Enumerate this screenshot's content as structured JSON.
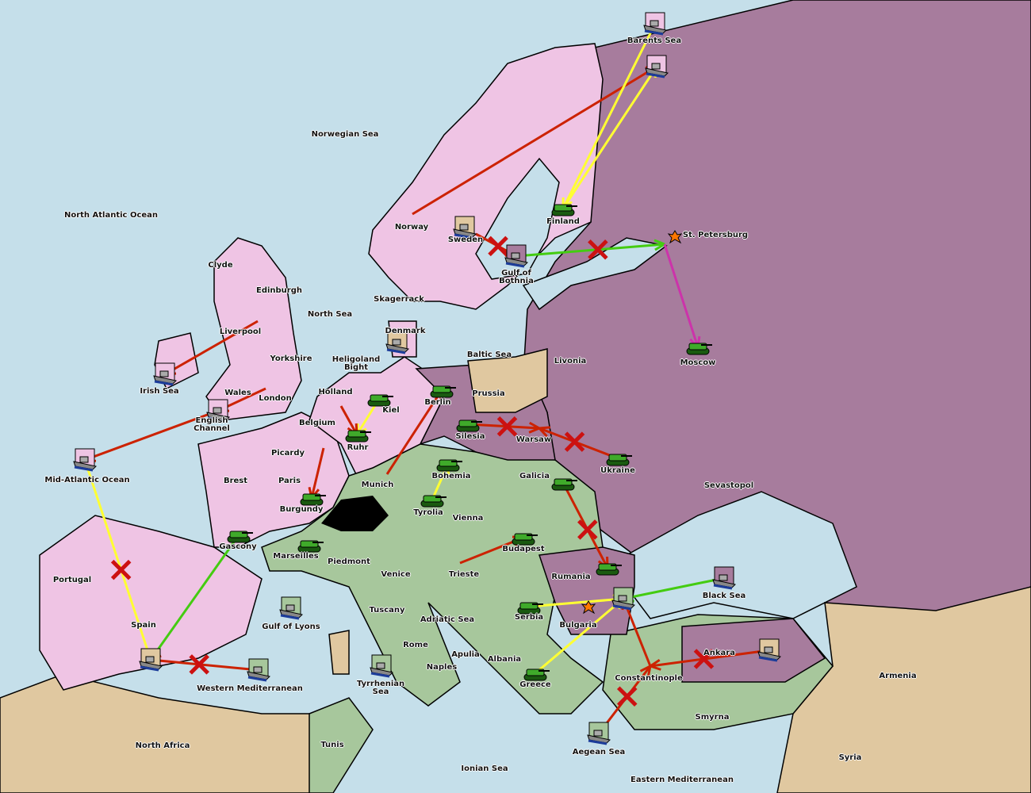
{
  "colors": {
    "sea": "#c5dfea",
    "england_germany": "#efc4e4",
    "russia_turkey": "#a77c9d",
    "austria_italy": "#a7c79c",
    "neutral": "#e0c8a0",
    "move_fail": "#cc2200",
    "support": "#ffff33",
    "convoy_hold": "#44cc11",
    "retreat": "#cc33aa"
  },
  "provinces": [
    "Barents Sea",
    "Norwegian Sea",
    "North Atlantic Ocean",
    "Finland",
    "Norway",
    "Sweden",
    "Gulf of Bothnia",
    "St. Petersburg",
    "Clyde",
    "Edinburgh",
    "North Sea",
    "Skagerrack",
    "Liverpool",
    "Denmark",
    "Baltic Sea",
    "Livonia",
    "Moscow",
    "Yorkshire",
    "Heligoland Bight",
    "Irish Sea",
    "Wales",
    "London",
    "Holland",
    "Kiel",
    "Prussia",
    "Berlin",
    "English Channel",
    "Belgium",
    "Silesia",
    "Warsaw",
    "Ruhr",
    "Ukraine",
    "Picardy",
    "Mid-Atlantic Ocean",
    "Brest",
    "Paris",
    "Munich",
    "Bohemia",
    "Galicia",
    "Sevastopol",
    "Burgundy",
    "Tyrolia",
    "Vienna",
    "Gascony",
    "Budapest",
    "Marseilles",
    "Piedmont",
    "Portugal",
    "Venice",
    "Trieste",
    "Rumania",
    "Black Sea",
    "Spain",
    "Gulf of Lyons",
    "Tuscany",
    "Adriatic Sea",
    "Serbia",
    "Bulgaria",
    "Rome",
    "Apulia",
    "Albania",
    "Ankara",
    "Naples",
    "Armenia",
    "Western Mediterranean",
    "Tyrrhenian Sea",
    "Greece",
    "Constantinople",
    "Smyrna",
    "North Africa",
    "Tunis",
    "Aegean Sea",
    "Syria",
    "Ionian Sea",
    "Eastern Mediterranean"
  ],
  "units": [
    {
      "type": "fleet",
      "at": "Barents Sea",
      "owner": "england_germany"
    },
    {
      "type": "fleet",
      "at": "St. Petersburg NC",
      "owner": "england_germany"
    },
    {
      "type": "army",
      "at": "Finland",
      "owner": "austria_italy"
    },
    {
      "type": "fleet",
      "at": "Sweden",
      "owner": "neutral"
    },
    {
      "type": "fleet",
      "at": "Gulf of Bothnia",
      "owner": "russia_turkey"
    },
    {
      "type": "fleet",
      "at": "Denmark",
      "owner": "neutral"
    },
    {
      "type": "fleet",
      "at": "Irish Sea",
      "owner": "england_germany"
    },
    {
      "type": "fleet",
      "at": "English Channel",
      "owner": "england_germany"
    },
    {
      "type": "fleet",
      "at": "Mid-Atlantic Ocean",
      "owner": "england_germany"
    },
    {
      "type": "army",
      "at": "Kiel",
      "owner": "austria_italy"
    },
    {
      "type": "army",
      "at": "Ruhr",
      "owner": "austria_italy"
    },
    {
      "type": "army",
      "at": "Berlin",
      "owner": "austria_italy"
    },
    {
      "type": "army",
      "at": "Silesia",
      "owner": "austria_italy"
    },
    {
      "type": "army",
      "at": "Ukraine",
      "owner": "austria_italy"
    },
    {
      "type": "army",
      "at": "Moscow",
      "owner": "austria_italy"
    },
    {
      "type": "army",
      "at": "Bohemia",
      "owner": "austria_italy"
    },
    {
      "type": "army",
      "at": "Tyrolia",
      "owner": "austria_italy"
    },
    {
      "type": "army",
      "at": "Galicia",
      "owner": "austria_italy"
    },
    {
      "type": "army",
      "at": "Budapest",
      "owner": "austria_italy"
    },
    {
      "type": "army",
      "at": "Burgundy",
      "owner": "austria_italy"
    },
    {
      "type": "army",
      "at": "Gascony",
      "owner": "austria_italy"
    },
    {
      "type": "army",
      "at": "Marseilles",
      "owner": "austria_italy"
    },
    {
      "type": "army",
      "at": "Rumania",
      "owner": "austria_italy"
    },
    {
      "type": "army",
      "at": "Serbia",
      "owner": "austria_italy"
    },
    {
      "type": "army",
      "at": "Greece",
      "owner": "austria_italy"
    },
    {
      "type": "fleet",
      "at": "Gulf of Lyons",
      "owner": "austria_italy"
    },
    {
      "type": "fleet",
      "at": "Spain",
      "owner": "neutral"
    },
    {
      "type": "fleet",
      "at": "Western Mediterranean",
      "owner": "austria_italy"
    },
    {
      "type": "fleet",
      "at": "Tyrrhenian Sea",
      "owner": "austria_italy"
    },
    {
      "type": "fleet",
      "at": "Bulgaria",
      "owner": "austria_italy"
    },
    {
      "type": "fleet",
      "at": "Black Sea",
      "owner": "russia_turkey"
    },
    {
      "type": "fleet",
      "at": "Ankara",
      "owner": "neutral"
    },
    {
      "type": "fleet",
      "at": "Aegean Sea",
      "owner": "austria_italy"
    }
  ],
  "orders": [
    {
      "from": "Norway",
      "to": "St. Petersburg NC",
      "kind": "move",
      "failed": false
    },
    {
      "from": "Barents Sea",
      "to": "Finland",
      "kind": "support",
      "failed": false
    },
    {
      "from": "Finland",
      "to": "St. Petersburg NC",
      "kind": "support",
      "failed": false
    },
    {
      "from": "Gulf of Bothnia",
      "to": "St. Petersburg",
      "kind": "convoy",
      "failed": true
    },
    {
      "from": "St. Petersburg",
      "to": "Moscow",
      "kind": "retreat",
      "failed": false
    },
    {
      "from": "Sweden",
      "to": "Gulf of Bothnia",
      "kind": "move",
      "failed": true
    },
    {
      "from": "Liverpool",
      "to": "Irish Sea",
      "kind": "move",
      "failed": false
    },
    {
      "from": "London",
      "to": "English Channel",
      "kind": "move",
      "failed": false
    },
    {
      "from": "English Channel",
      "to": "Mid-Atlantic Ocean",
      "kind": "move",
      "failed": false
    },
    {
      "from": "Mid-Atlantic Ocean",
      "to": "Spain",
      "kind": "support",
      "failed": true
    },
    {
      "from": "Kiel",
      "to": "Ruhr",
      "kind": "support",
      "failed": false
    },
    {
      "from": "Holland",
      "to": "Ruhr",
      "kind": "move",
      "failed": false
    },
    {
      "from": "Picardy",
      "to": "Burgundy",
      "kind": "move",
      "failed": false
    },
    {
      "from": "Munich",
      "to": "Berlin",
      "kind": "move",
      "failed": false
    },
    {
      "from": "Silesia",
      "to": "Warsaw",
      "kind": "move",
      "failed": true
    },
    {
      "from": "Ukraine",
      "to": "Warsaw",
      "kind": "move",
      "failed": true
    },
    {
      "from": "Tyrolia",
      "to": "Bohemia",
      "kind": "support",
      "failed": false
    },
    {
      "from": "Galicia",
      "to": "Rumania",
      "kind": "move",
      "failed": true
    },
    {
      "from": "Trieste",
      "to": "Budapest",
      "kind": "move",
      "failed": false
    },
    {
      "from": "Gascony",
      "to": "Spain",
      "kind": "convoy",
      "failed": false
    },
    {
      "from": "Western Mediterranean",
      "to": "Spain",
      "kind": "move",
      "failed": true
    },
    {
      "from": "Black Sea",
      "to": "Bulgaria",
      "kind": "convoy",
      "failed": false
    },
    {
      "from": "Serbia",
      "to": "Bulgaria",
      "kind": "support",
      "failed": false
    },
    {
      "from": "Greece",
      "to": "Bulgaria",
      "kind": "support",
      "failed": false
    },
    {
      "from": "Ankara",
      "to": "Constantinople",
      "kind": "move",
      "failed": true
    },
    {
      "from": "Aegean Sea",
      "to": "Constantinople",
      "kind": "move",
      "failed": true
    },
    {
      "from": "Constantinople",
      "to": "Bulgaria",
      "kind": "move",
      "failed": false
    }
  ]
}
